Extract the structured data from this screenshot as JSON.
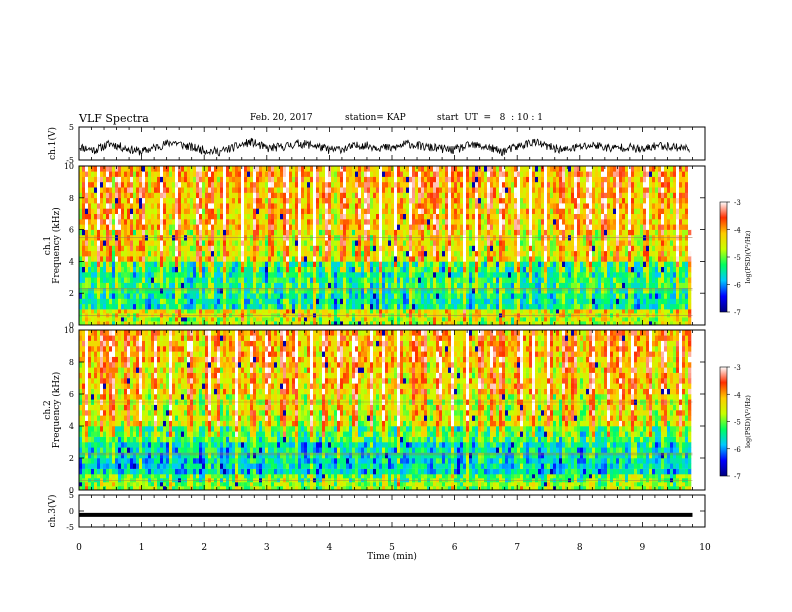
{
  "header": {
    "title": "VLF Spectra",
    "date": "Feb. 20, 2017",
    "station": "station= KAP",
    "start": "start  UT  =   8  : 10 : 1"
  },
  "colorbar": {
    "label": "log(PSD)(V²/Hz)",
    "ticks": [
      "-3",
      "-4",
      "-5",
      "-6",
      "-7"
    ],
    "stops": [
      "#000080",
      "#0000ff",
      "#00c8ff",
      "#00ff60",
      "#c8ff00",
      "#ffcc00",
      "#ff3000",
      "#ffffff"
    ]
  },
  "chart_data": [
    {
      "type": "line",
      "panel": "ch1-waveform",
      "ylabel": "ch.1(V)",
      "yticks": [
        "5",
        "-5"
      ],
      "ylim": [
        -5,
        5
      ],
      "xlim": [
        0,
        10
      ],
      "description_of_series": "noisy waveform oscillating around -1 V between about -4 and 2",
      "series": [
        {
          "x": [
            0,
            0.25,
            0.5,
            0.75,
            1,
            1.25,
            1.5,
            1.75,
            2,
            2.25,
            2.5,
            2.75,
            3,
            3.25,
            3.5,
            3.75,
            4,
            4.25,
            4.5,
            4.75,
            5,
            5.25,
            5.5,
            5.75,
            6,
            6.25,
            6.5,
            6.75,
            7,
            7.25,
            7.5,
            7.75,
            8,
            8.25,
            8.5,
            8.75,
            9,
            9.25,
            9.5,
            9.75
          ],
          "y": [
            -1,
            -2,
            0,
            -1.5,
            -2.5,
            -1,
            0.5,
            -1,
            -2,
            -2.5,
            -1,
            0.5,
            -1.5,
            -1,
            0,
            -0.5,
            -2,
            -1.5,
            -0.5,
            -1,
            -1.5,
            0,
            -1,
            -1.5,
            -2,
            -0.5,
            -1,
            -2.5,
            -1,
            0.5,
            -1,
            -2,
            -1,
            -0.5,
            -1.5,
            -1,
            -2,
            -0.5,
            -1,
            -1.5
          ]
        }
      ]
    },
    {
      "type": "heatmap",
      "panel": "ch1-spectrogram",
      "ylabel": "ch.1\nFrequency (kHz)",
      "yticks": [
        "0",
        "2",
        "4",
        "6",
        "8",
        "10"
      ],
      "ylim": [
        0,
        10
      ],
      "xlim": [
        0,
        9.8
      ],
      "zlabel": "log(PSD)(V²/Hz)",
      "zlim": [
        -7,
        -3
      ],
      "freq_bands_khz": [
        [
          0,
          0.5
        ],
        [
          0.5,
          1
        ],
        [
          1,
          2
        ],
        [
          2,
          3
        ],
        [
          3,
          4
        ],
        [
          4,
          6
        ],
        [
          6,
          8
        ],
        [
          8,
          10
        ]
      ],
      "band_level": [
        -4.8,
        -4.6,
        -5.6,
        -5.4,
        -5.5,
        -4.6,
        -4.3,
        -4.2
      ],
      "bright_bursts_min": [
        0.08,
        0.3,
        0.45,
        0.6,
        0.8,
        1.0,
        1.3,
        1.55,
        1.9,
        2.1,
        2.3,
        2.6,
        2.8,
        3.05,
        3.3,
        3.5,
        3.75,
        3.95,
        4.2,
        4.45,
        4.6,
        4.8,
        5.05,
        5.3,
        5.45,
        5.7,
        5.9,
        6.15,
        6.35,
        6.55,
        6.75,
        7.0,
        7.2,
        7.45,
        7.7,
        7.95,
        8.15,
        8.4,
        8.6,
        8.8,
        9.05,
        9.3,
        9.55,
        9.75
      ]
    },
    {
      "type": "heatmap",
      "panel": "ch2-spectrogram",
      "ylabel": "ch.2\nFrequency (kHz)",
      "yticks": [
        "0",
        "2",
        "4",
        "6",
        "8",
        "10"
      ],
      "ylim": [
        0,
        10
      ],
      "xlim": [
        0,
        9.8
      ],
      "zlabel": "log(PSD)(V²/Hz)",
      "zlim": [
        -7,
        -3
      ],
      "freq_bands_khz": [
        [
          0,
          0.5
        ],
        [
          0.5,
          1
        ],
        [
          1,
          2
        ],
        [
          2,
          3
        ],
        [
          3,
          4
        ],
        [
          4,
          6
        ],
        [
          6,
          8
        ],
        [
          8,
          10
        ]
      ],
      "band_level": [
        -5.0,
        -5.2,
        -5.8,
        -5.7,
        -5.3,
        -4.7,
        -4.4,
        -4.2
      ],
      "bright_bursts_min": [
        0.1,
        0.35,
        0.5,
        0.75,
        0.95,
        1.2,
        1.45,
        1.75,
        2.05,
        2.2,
        2.5,
        2.75,
        3.0,
        3.25,
        3.45,
        3.7,
        3.9,
        4.15,
        4.4,
        4.65,
        4.85,
        5.1,
        5.35,
        5.5,
        5.75,
        5.95,
        6.2,
        6.4,
        6.6,
        6.75,
        7.05,
        7.25,
        7.5,
        7.75,
        7.9,
        8.2,
        8.45,
        8.65,
        8.85,
        9.1,
        9.35,
        9.6,
        9.78
      ]
    },
    {
      "type": "line",
      "panel": "ch3-waveform",
      "ylabel": "ch.3(V)",
      "yticks": [
        "5",
        "0",
        "-5"
      ],
      "ylim": [
        -5,
        5
      ],
      "xlim": [
        0,
        10
      ],
      "series": [
        {
          "x": [
            0,
            9.8
          ],
          "y": [
            -1.2,
            -1.2
          ]
        }
      ]
    }
  ],
  "xaxis": {
    "label": "Time (min)",
    "ticks": [
      "0",
      "1",
      "2",
      "3",
      "4",
      "5",
      "6",
      "7",
      "8",
      "9",
      "10"
    ],
    "xlim": [
      0,
      10
    ]
  }
}
